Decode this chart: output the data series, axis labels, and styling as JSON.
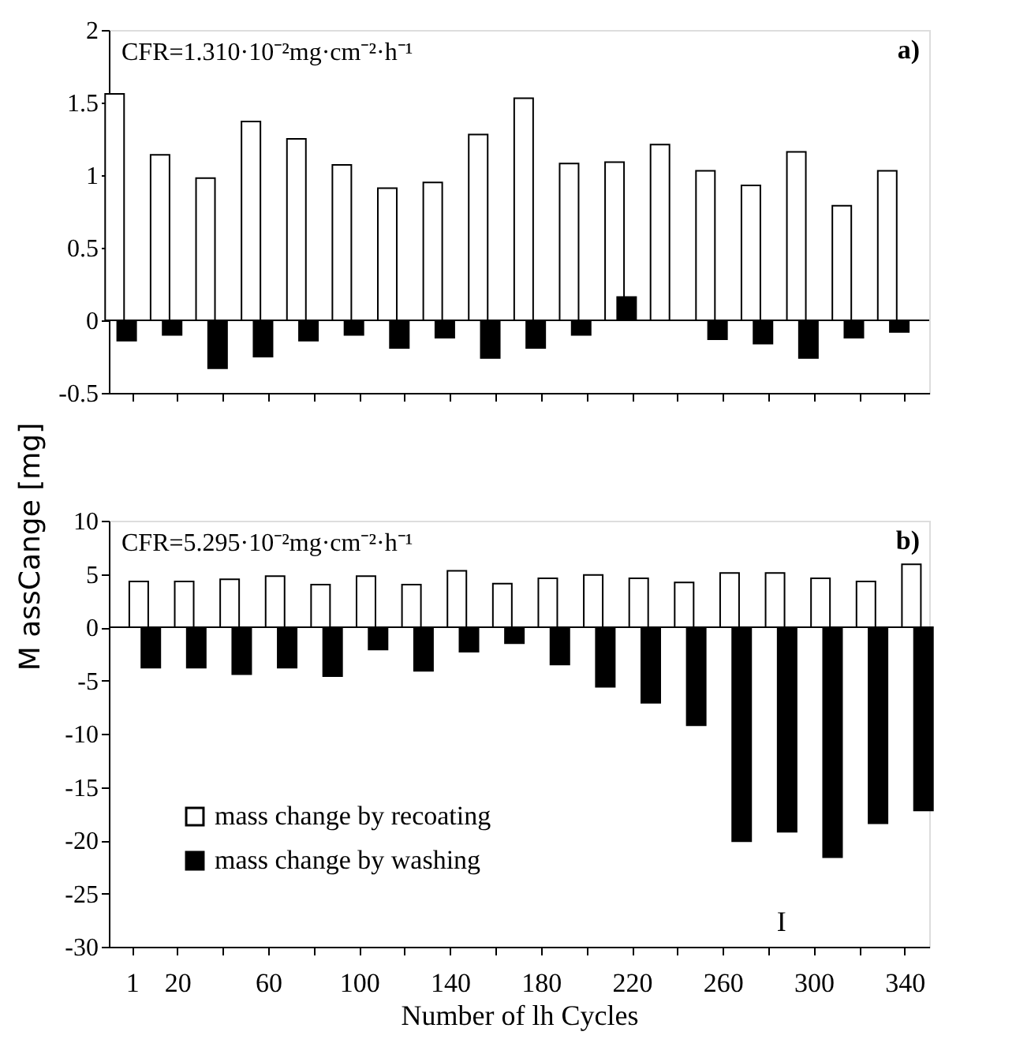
{
  "chart_data": [
    {
      "type": "bar",
      "categories": [
        "1",
        "20",
        null,
        "60",
        null,
        "100",
        null,
        "140",
        null,
        "180",
        null,
        "220",
        null,
        "260",
        null,
        "300",
        null,
        "340"
      ],
      "series": [
        {
          "color": "#ffffff",
          "values": [
            1.56,
            1.14,
            0.98,
            1.37,
            1.25,
            1.07,
            0.91,
            0.95,
            1.28,
            1.53,
            1.08,
            1.09,
            1.21,
            1.03,
            0.93,
            1.16,
            0.79,
            1.03
          ]
        },
        {
          "color": "#000000",
          "values": [
            -0.14,
            -0.1,
            -0.33,
            -0.25,
            -0.14,
            -0.1,
            -0.19,
            -0.12,
            -0.26,
            -0.19,
            -0.1,
            0.16,
            null,
            -0.13,
            -0.16,
            -0.26,
            -0.12,
            -0.08
          ]
        }
      ],
      "ylim": [
        -0.5,
        2
      ],
      "yticks": [
        -0.5,
        0,
        0.5,
        1,
        1.5,
        2
      ],
      "grid": false,
      "legend": false,
      "tick_labels": "y",
      "ref_lines": [
        {
          "axis": "y",
          "value": 0
        }
      ],
      "annotations": [
        "CFR=1.310·10⁻²mg·cm⁻²·h⁻¹",
        "a)"
      ]
    },
    {
      "type": "bar",
      "categories": [
        "1",
        "20",
        null,
        "60",
        null,
        "100",
        null,
        "140",
        null,
        "180",
        null,
        "220",
        null,
        "260",
        null,
        "300",
        null,
        "340"
      ],
      "series": [
        {
          "name": "mass change by recoating",
          "color": "#ffffff",
          "values": [
            4.3,
            4.3,
            4.5,
            4.8,
            4.0,
            4.8,
            4.0,
            5.3,
            4.1,
            4.6,
            4.9,
            4.6,
            4.2,
            5.1,
            5.1,
            4.6,
            4.3,
            5.9
          ]
        },
        {
          "name": "mass change by washing",
          "color": "#000000",
          "values": [
            -3.8,
            -3.8,
            -4.4,
            -3.8,
            -4.6,
            -2.1,
            -4.1,
            -2.3,
            -1.5,
            -3.5,
            -5.6,
            -7.1,
            -9.2,
            -20.1,
            -19.2,
            -21.6,
            -18.4,
            -17.2
          ]
        }
      ],
      "ylim": [
        -30,
        10
      ],
      "yticks": [
        -30,
        -25,
        -20,
        -15,
        -10,
        -5,
        0,
        5,
        10
      ],
      "grid": false,
      "legend": "bottom left",
      "xlabel": "Number of lh Cycles",
      "ylabel": "M assCange [mg]",
      "ref_lines": [
        {
          "axis": "y",
          "value": 0
        }
      ],
      "annotations": [
        "CFR=5.295·10⁻²mg·cm⁻²·h⁻¹",
        "b)",
        "I"
      ]
    }
  ]
}
